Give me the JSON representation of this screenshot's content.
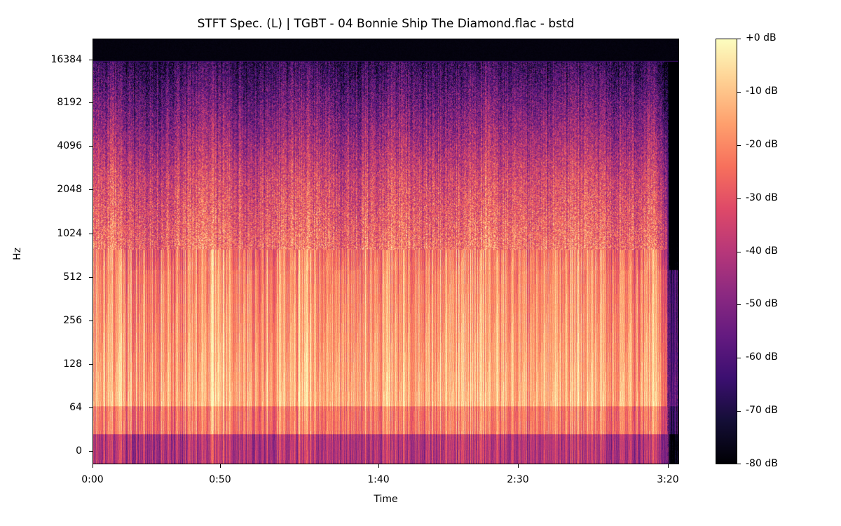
{
  "chart_data": {
    "type": "heatmap",
    "title": "STFT Spec. (L) | TGBT - 04 Bonnie Ship The Diamond.flac - bstd",
    "xlabel": "Time",
    "ylabel": "Hz",
    "x_ticks": [
      {
        "label": "0:00",
        "seconds": 0,
        "px": 132
      },
      {
        "label": "0:50",
        "seconds": 50,
        "px": 314
      },
      {
        "label": "1:40",
        "seconds": 100,
        "px": 540
      },
      {
        "label": "2:30",
        "seconds": 150,
        "px": 739
      },
      {
        "label": "3:20",
        "seconds": 200,
        "px": 953
      }
    ],
    "y_scale": "log2",
    "y_ticks": [
      {
        "label": "16384",
        "hz": 16384,
        "px": 85
      },
      {
        "label": "8192",
        "hz": 8192,
        "px": 146
      },
      {
        "label": "4096",
        "hz": 4096,
        "px": 208
      },
      {
        "label": "2048",
        "hz": 2048,
        "px": 270
      },
      {
        "label": "1024",
        "hz": 1024,
        "px": 333
      },
      {
        "label": "512",
        "hz": 512,
        "px": 395
      },
      {
        "label": "256",
        "hz": 256,
        "px": 457
      },
      {
        "label": "128",
        "hz": 128,
        "px": 519
      },
      {
        "label": "64",
        "hz": 64,
        "px": 581
      },
      {
        "label": "0",
        "hz": 0,
        "px": 643
      }
    ],
    "xlim_seconds": [
      0,
      203
    ],
    "colormap": "magma",
    "colorbar": {
      "range_db": [
        -80,
        0
      ],
      "ticks": [
        {
          "label": "+0 dB",
          "value": 0
        },
        {
          "label": "-10 dB",
          "value": -10
        },
        {
          "label": "-20 dB",
          "value": -20
        },
        {
          "label": "-30 dB",
          "value": -30
        },
        {
          "label": "-40 dB",
          "value": -40
        },
        {
          "label": "-50 dB",
          "value": -50
        },
        {
          "label": "-60 dB",
          "value": -60
        },
        {
          "label": "-70 dB",
          "value": -70
        },
        {
          "label": "-80 dB",
          "value": -80
        }
      ]
    },
    "grid": false,
    "observations": {
      "energy_concentration": "Strongest energy (-5 to -20 dB) between ~64 Hz and ~600 Hz across the whole track",
      "high_freq_rolloff": "Energy fades to below -70 dB above ~8 kHz; near-silent band above ~16 kHz with a faint horizontal line at ~16 kHz",
      "quiet_intro": "Lower energy in mid/high bands around 0:10–0:25",
      "fade_out": "Track ends around 3:20 with energy tapering off at the right edge"
    }
  },
  "magma_stops": [
    "#000004",
    "#140e36",
    "#3b0f70",
    "#641a80",
    "#8c2981",
    "#b73779",
    "#de4968",
    "#f7705c",
    "#fe9f6d",
    "#fecf92",
    "#fcfdbf"
  ]
}
